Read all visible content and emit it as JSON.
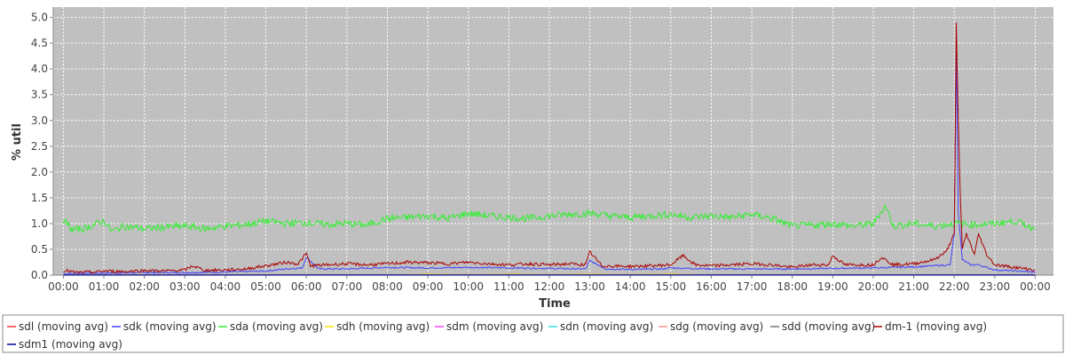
{
  "chart_data": {
    "type": "line",
    "xlabel": "Time",
    "ylabel": "% util",
    "ylim": [
      0,
      5.2
    ],
    "yticks": [
      "0.0",
      "0.5",
      "1.0",
      "1.5",
      "2.0",
      "2.5",
      "3.0",
      "3.5",
      "4.0",
      "4.5",
      "5.0"
    ],
    "x_ticks": [
      "00:00",
      "01:00",
      "02:00",
      "03:00",
      "04:00",
      "05:00",
      "06:00",
      "07:00",
      "08:00",
      "09:00",
      "10:00",
      "11:00",
      "12:00",
      "13:00",
      "14:00",
      "15:00",
      "16:00",
      "17:00",
      "18:00",
      "19:00",
      "20:00",
      "21:00",
      "22:00",
      "23:00",
      "00:00"
    ],
    "xlim_hours": [
      -0.25,
      24.45
    ],
    "grid": true,
    "legend_position": "bottom",
    "series": [
      {
        "name": "sdl (moving avg)",
        "color": "#ff3333",
        "x": [
          0,
          24
        ],
        "values": [
          0.0,
          0.0
        ]
      },
      {
        "name": "sdk (moving avg)",
        "color": "#4444ff",
        "x": [
          0,
          1,
          2,
          3,
          4,
          5,
          5.5,
          5.9,
          6.0,
          6.3,
          7,
          8,
          9,
          10,
          11,
          12,
          12.9,
          13.0,
          13.4,
          14,
          14.8,
          15,
          16,
          17,
          18,
          19,
          20,
          21,
          21.9,
          22.0,
          22.05,
          22.1,
          22.2,
          22.4,
          22.6,
          23,
          23.5,
          24
        ],
        "values": [
          0.03,
          0.04,
          0.05,
          0.05,
          0.06,
          0.08,
          0.12,
          0.14,
          0.35,
          0.12,
          0.12,
          0.15,
          0.14,
          0.15,
          0.14,
          0.13,
          0.12,
          0.28,
          0.12,
          0.11,
          0.12,
          0.14,
          0.12,
          0.12,
          0.12,
          0.13,
          0.14,
          0.16,
          0.2,
          0.8,
          4.4,
          1.2,
          0.3,
          0.2,
          0.2,
          0.1,
          0.08,
          0.06
        ]
      },
      {
        "name": "sda (moving avg)",
        "color": "#33ee33",
        "x": [
          0,
          0.2,
          0.5,
          1.0,
          1.2,
          1.5,
          2,
          2.5,
          3,
          3.5,
          4,
          4.5,
          5,
          5.5,
          6,
          6.5,
          7,
          7.5,
          8,
          8.5,
          9,
          9.5,
          10,
          10.5,
          11,
          11.5,
          12,
          12.5,
          13,
          13.5,
          14,
          14.5,
          15,
          15.5,
          16,
          16.5,
          17,
          17.5,
          18,
          18.5,
          19,
          19.5,
          20,
          20.3,
          20.5,
          21,
          21.5,
          22,
          22.5,
          23,
          23.5,
          24
        ],
        "values": [
          1.1,
          0.88,
          0.9,
          1.05,
          0.85,
          0.95,
          0.9,
          0.93,
          0.95,
          0.9,
          0.95,
          0.98,
          1.05,
          1.0,
          1.02,
          0.98,
          1.0,
          0.97,
          1.1,
          1.12,
          1.15,
          1.1,
          1.2,
          1.15,
          1.12,
          1.1,
          1.15,
          1.18,
          1.2,
          1.15,
          1.12,
          1.15,
          1.18,
          1.12,
          1.15,
          1.12,
          1.18,
          1.1,
          0.95,
          0.97,
          1.0,
          0.95,
          1.0,
          1.35,
          0.95,
          1.0,
          0.95,
          1.0,
          0.98,
          1.0,
          1.05,
          0.9
        ]
      },
      {
        "name": "sdh (moving avg)",
        "color": "#ffdd00",
        "x": [
          0,
          8,
          9,
          10,
          11,
          12,
          13,
          14,
          15,
          16,
          24
        ],
        "values": [
          0.0,
          0.0,
          0.02,
          0.01,
          0.02,
          0.01,
          0.02,
          0.01,
          0.02,
          0.0,
          0.0
        ]
      },
      {
        "name": "sdm (moving avg)",
        "color": "#ff44ff",
        "x": [
          0,
          24
        ],
        "values": [
          0.0,
          0.0
        ]
      },
      {
        "name": "sdn (moving avg)",
        "color": "#33dddd",
        "x": [
          0,
          24
        ],
        "values": [
          0.0,
          0.0
        ]
      },
      {
        "name": "sdg (moving avg)",
        "color": "#ff9999",
        "x": [
          0,
          24
        ],
        "values": [
          0.0,
          0.0
        ]
      },
      {
        "name": "sdd (moving avg)",
        "color": "#777777",
        "x": [
          0,
          24
        ],
        "values": [
          0.01,
          0.01
        ]
      },
      {
        "name": "dm-1 (moving avg)",
        "color": "#aa0000",
        "x": [
          0,
          0.3,
          0.8,
          1,
          1.5,
          2,
          2.5,
          3,
          3.2,
          3.5,
          4,
          4.5,
          5,
          5.5,
          5.8,
          6.0,
          6.1,
          6.5,
          7,
          7.5,
          8,
          8.5,
          9,
          9.5,
          10,
          10.5,
          11,
          11.5,
          12,
          12.5,
          12.9,
          13.0,
          13.3,
          14,
          14.5,
          15,
          15.3,
          15.6,
          16,
          16.5,
          17,
          17.5,
          18,
          18.5,
          18.9,
          19.0,
          19.3,
          20,
          20.2,
          20.5,
          21,
          21.5,
          21.8,
          22.0,
          22.05,
          22.1,
          22.15,
          22.2,
          22.3,
          22.4,
          22.5,
          22.6,
          22.8,
          23,
          23.5,
          24
        ],
        "values": [
          0.1,
          0.05,
          0.06,
          0.08,
          0.07,
          0.09,
          0.08,
          0.1,
          0.18,
          0.09,
          0.1,
          0.12,
          0.18,
          0.25,
          0.22,
          0.42,
          0.18,
          0.2,
          0.22,
          0.2,
          0.22,
          0.25,
          0.24,
          0.22,
          0.25,
          0.22,
          0.2,
          0.22,
          0.2,
          0.22,
          0.2,
          0.45,
          0.18,
          0.17,
          0.18,
          0.2,
          0.38,
          0.2,
          0.18,
          0.2,
          0.22,
          0.2,
          0.15,
          0.2,
          0.2,
          0.38,
          0.2,
          0.2,
          0.35,
          0.2,
          0.22,
          0.3,
          0.45,
          0.8,
          4.9,
          3.0,
          1.5,
          0.5,
          0.8,
          0.6,
          0.4,
          0.8,
          0.4,
          0.2,
          0.15,
          0.1
        ]
      },
      {
        "name": "sdm1 (moving avg)",
        "color": "#000099",
        "x": [
          0,
          24
        ],
        "values": [
          0.0,
          0.0
        ]
      }
    ]
  }
}
